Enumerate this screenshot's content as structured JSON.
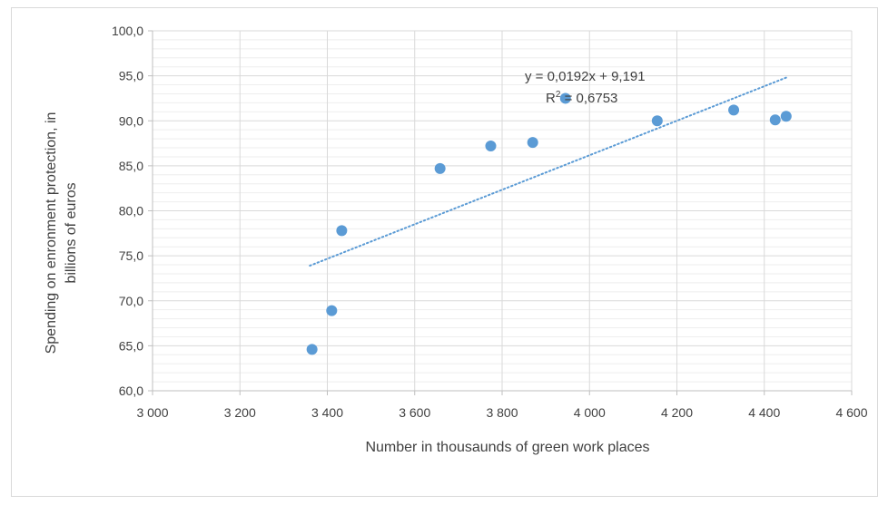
{
  "chart_data": {
    "type": "scatter",
    "title": "",
    "xlabel": "Number in thousaunds of green work places",
    "ylabel_lines": [
      "Spending on enronment protection, in",
      "billions of euros"
    ],
    "xlim": [
      3000,
      4600
    ],
    "ylim": [
      60,
      100
    ],
    "x_ticks": [
      {
        "value": 3000,
        "label": "3 000"
      },
      {
        "value": 3200,
        "label": "3 200"
      },
      {
        "value": 3400,
        "label": "3 400"
      },
      {
        "value": 3600,
        "label": "3 600"
      },
      {
        "value": 3800,
        "label": "3 800"
      },
      {
        "value": 4000,
        "label": "4 000"
      },
      {
        "value": 4200,
        "label": "4 200"
      },
      {
        "value": 4400,
        "label": "4 400"
      },
      {
        "value": 4600,
        "label": "4 600"
      }
    ],
    "y_ticks": [
      {
        "value": 60,
        "label": "60,0"
      },
      {
        "value": 65,
        "label": "65,0"
      },
      {
        "value": 70,
        "label": "70,0"
      },
      {
        "value": 75,
        "label": "75,0"
      },
      {
        "value": 80,
        "label": "80,0"
      },
      {
        "value": 85,
        "label": "85,0"
      },
      {
        "value": 90,
        "label": "90,0"
      },
      {
        "value": 95,
        "label": "95,0"
      },
      {
        "value": 100,
        "label": "100,0"
      }
    ],
    "y_minor_step": 1,
    "grid": true,
    "points": [
      {
        "x": 3365,
        "y": 64.6
      },
      {
        "x": 3410,
        "y": 68.9
      },
      {
        "x": 3433,
        "y": 77.8
      },
      {
        "x": 3658,
        "y": 84.7
      },
      {
        "x": 3774,
        "y": 87.2
      },
      {
        "x": 3870,
        "y": 87.6
      },
      {
        "x": 3945,
        "y": 92.5
      },
      {
        "x": 4155,
        "y": 90.0
      },
      {
        "x": 4330,
        "y": 91.2
      },
      {
        "x": 4425,
        "y": 90.1
      },
      {
        "x": 4450,
        "y": 90.5
      }
    ],
    "trendline": {
      "type": "linear",
      "x_range": [
        3360,
        4450
      ],
      "y_range": [
        73.9,
        94.8
      ],
      "equation": "y = 0,0192x + 9,191",
      "r2_prefix": "R",
      "r2_sup": "2",
      "r2_value": " = 0,6753"
    },
    "colors": {
      "point": "#5b9bd5",
      "trendline": "#5b9bd5",
      "major_grid": "#d9d9d9",
      "minor_grid": "#eeeeee",
      "axis": "#bfbfbf"
    }
  }
}
